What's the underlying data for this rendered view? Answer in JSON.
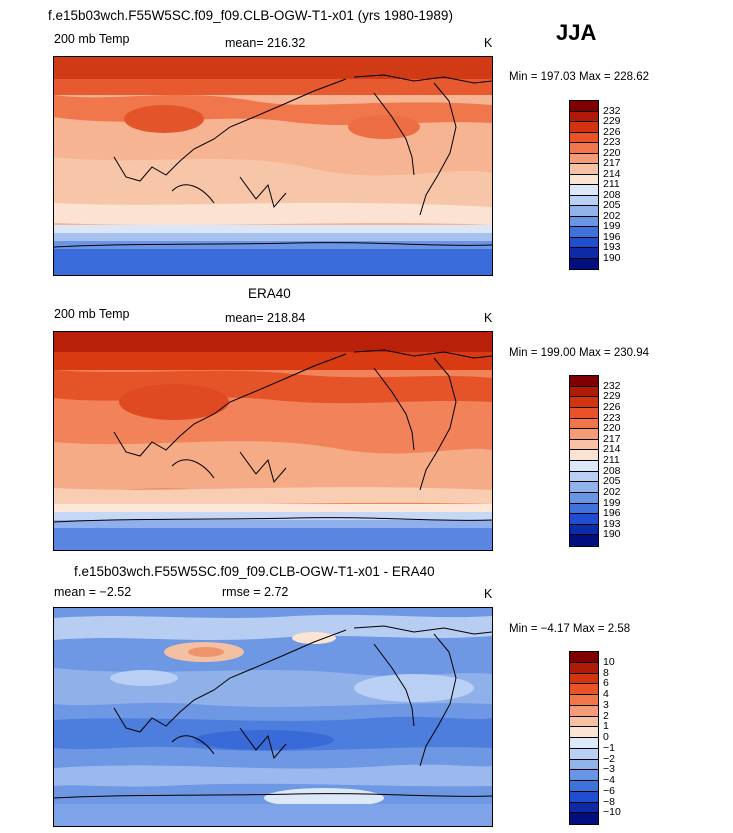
{
  "season": "JJA",
  "panels": [
    {
      "title": "f.e15b03wch.F55W5SC.f09_f09.CLB-OGW-T1-x01 (yrs 1980-1989)",
      "left_label": "200 mb Temp",
      "center_label": "mean= 216.32",
      "unit": "K",
      "minmax": "Min = 197.03 Max = 228.62",
      "colorbar": {
        "labels": [
          "232",
          "229",
          "226",
          "223",
          "220",
          "217",
          "214",
          "211",
          "208",
          "205",
          "202",
          "199",
          "196",
          "193",
          "190"
        ],
        "colors": [
          "#7f0000",
          "#b11a07",
          "#d3330f",
          "#ea5327",
          "#f2764a",
          "#f49c77",
          "#f7c1a3",
          "#fbe4d3",
          "#dde9f8",
          "#b9cff3",
          "#91b3ec",
          "#6896e5",
          "#3f72dc",
          "#1f4ed0",
          "#0d2ba6",
          "#000e80"
        ]
      }
    },
    {
      "title": "ERA40",
      "left_label": "200 mb Temp",
      "center_label": "mean= 218.84",
      "unit": "K",
      "minmax": "Min = 199.00 Max = 230.94",
      "colorbar": {
        "labels": [
          "232",
          "229",
          "226",
          "223",
          "220",
          "217",
          "214",
          "211",
          "208",
          "205",
          "202",
          "199",
          "196",
          "193",
          "190"
        ],
        "colors": [
          "#7f0000",
          "#b11a07",
          "#d3330f",
          "#ea5327",
          "#f2764a",
          "#f49c77",
          "#f7c1a3",
          "#fbe4d3",
          "#dde9f8",
          "#b9cff3",
          "#91b3ec",
          "#6896e5",
          "#3f72dc",
          "#1f4ed0",
          "#0d2ba6",
          "#000e80"
        ]
      }
    },
    {
      "title": "f.e15b03wch.F55W5SC.f09_f09.CLB-OGW-T1-x01 - ERA40",
      "left_label": "mean =  −2.52",
      "center_label": "rmse =   2.72",
      "unit": "K",
      "minmax": "Min =  −4.17 Max =   2.58",
      "colorbar": {
        "labels": [
          "10",
          "8",
          "6",
          "4",
          "3",
          "2",
          "1",
          "0",
          "−1",
          "−2",
          "−3",
          "−4",
          "−6",
          "−8",
          "−10"
        ],
        "colors": [
          "#7f0000",
          "#b11a07",
          "#d3330f",
          "#ea5327",
          "#f2764a",
          "#f49c77",
          "#f7c1a3",
          "#fbe4d3",
          "#dde9f8",
          "#b9cff3",
          "#91b3ec",
          "#6896e5",
          "#3f72dc",
          "#1f4ed0",
          "#0d2ba6",
          "#000e80"
        ]
      }
    }
  ]
}
